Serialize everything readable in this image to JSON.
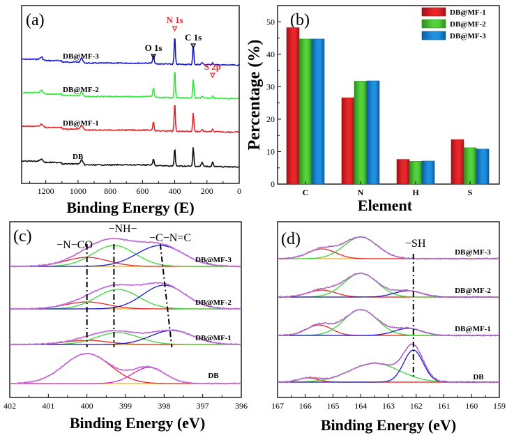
{
  "colors": {
    "mf1": "#e8262a",
    "mf2": "#54d13b",
    "mf3": "#1f8fe0",
    "survey_mf3": "#1a1ad0",
    "survey_mf2": "#2fe83a",
    "survey_mf1": "#e8262a",
    "survey_db": "#111111",
    "envelope": "#c070d8",
    "background_line": "#f5a623",
    "fit_red": "#e8262a",
    "fit_green": "#3ad63a",
    "fit_blue": "#1a1ad0",
    "fit_magenta": "#e020c8"
  },
  "chart_data": [
    {
      "panel": "a",
      "type": "line",
      "panel_label": "(a)",
      "xlabel": "Binding Energy (E)",
      "xlim": [
        1350,
        0
      ],
      "x_ticks": [
        "1200",
        "1000",
        "800",
        "600",
        "400",
        "200",
        "0"
      ],
      "series": [
        {
          "name": "DB@MF-3",
          "offset": 3
        },
        {
          "name": "DB@MF-2",
          "offset": 2
        },
        {
          "name": "DB@MF-1",
          "offset": 1
        },
        {
          "name": "DB",
          "offset": 0
        }
      ],
      "peaks": [
        {
          "label": "O 1s",
          "x": 532
        },
        {
          "label": "N 1s",
          "x": 400,
          "highlight": true
        },
        {
          "label": "C 1s",
          "x": 285
        },
        {
          "label": "S 2p",
          "x": 165,
          "highlight": true
        }
      ]
    },
    {
      "panel": "b",
      "type": "bar",
      "panel_label": "(b)",
      "xlabel": "Element",
      "ylabel": "Percentage (%)",
      "ylim": [
        0,
        55
      ],
      "y_ticks": [
        "0",
        "10",
        "20",
        "30",
        "40",
        "50"
      ],
      "categories": [
        "C",
        "N",
        "H",
        "S"
      ],
      "series": [
        {
          "name": "DB@MF-1",
          "values": [
            48.2,
            26.6,
            7.6,
            13.7
          ]
        },
        {
          "name": "DB@MF-2",
          "values": [
            44.7,
            31.7,
            7.0,
            11.2
          ]
        },
        {
          "name": "DB@MF-3",
          "values": [
            44.7,
            31.8,
            7.1,
            10.8
          ]
        }
      ],
      "legend_position": "top-right"
    },
    {
      "panel": "c",
      "type": "line",
      "panel_label": "(c)",
      "xlabel": "Binding Energy (eV)",
      "xlim": [
        402,
        396
      ],
      "x_ticks": [
        "402",
        "401",
        "400",
        "399",
        "398",
        "397",
        "396"
      ],
      "series": [
        {
          "name": "DB@MF-3"
        },
        {
          "name": "DB@MF-2"
        },
        {
          "name": "DB@MF-1"
        },
        {
          "name": "DB"
        }
      ],
      "assignments": [
        {
          "label": "−N−CO",
          "x": 400.0
        },
        {
          "label": "−NH−",
          "x": 399.3
        },
        {
          "label": "−C−N=C",
          "x": 398.0
        }
      ]
    },
    {
      "panel": "d",
      "type": "line",
      "panel_label": "(d)",
      "xlabel": "Binding Energy (eV)",
      "xlim": [
        167,
        159
      ],
      "x_ticks": [
        "167",
        "166",
        "165",
        "164",
        "163",
        "162",
        "161",
        "160",
        "159"
      ],
      "series": [
        {
          "name": "DB@MF-3"
        },
        {
          "name": "DB@MF-2"
        },
        {
          "name": "DB@MF-1"
        },
        {
          "name": "DB"
        }
      ],
      "assignments": [
        {
          "label": "−SH",
          "x": 162.1
        }
      ]
    }
  ]
}
